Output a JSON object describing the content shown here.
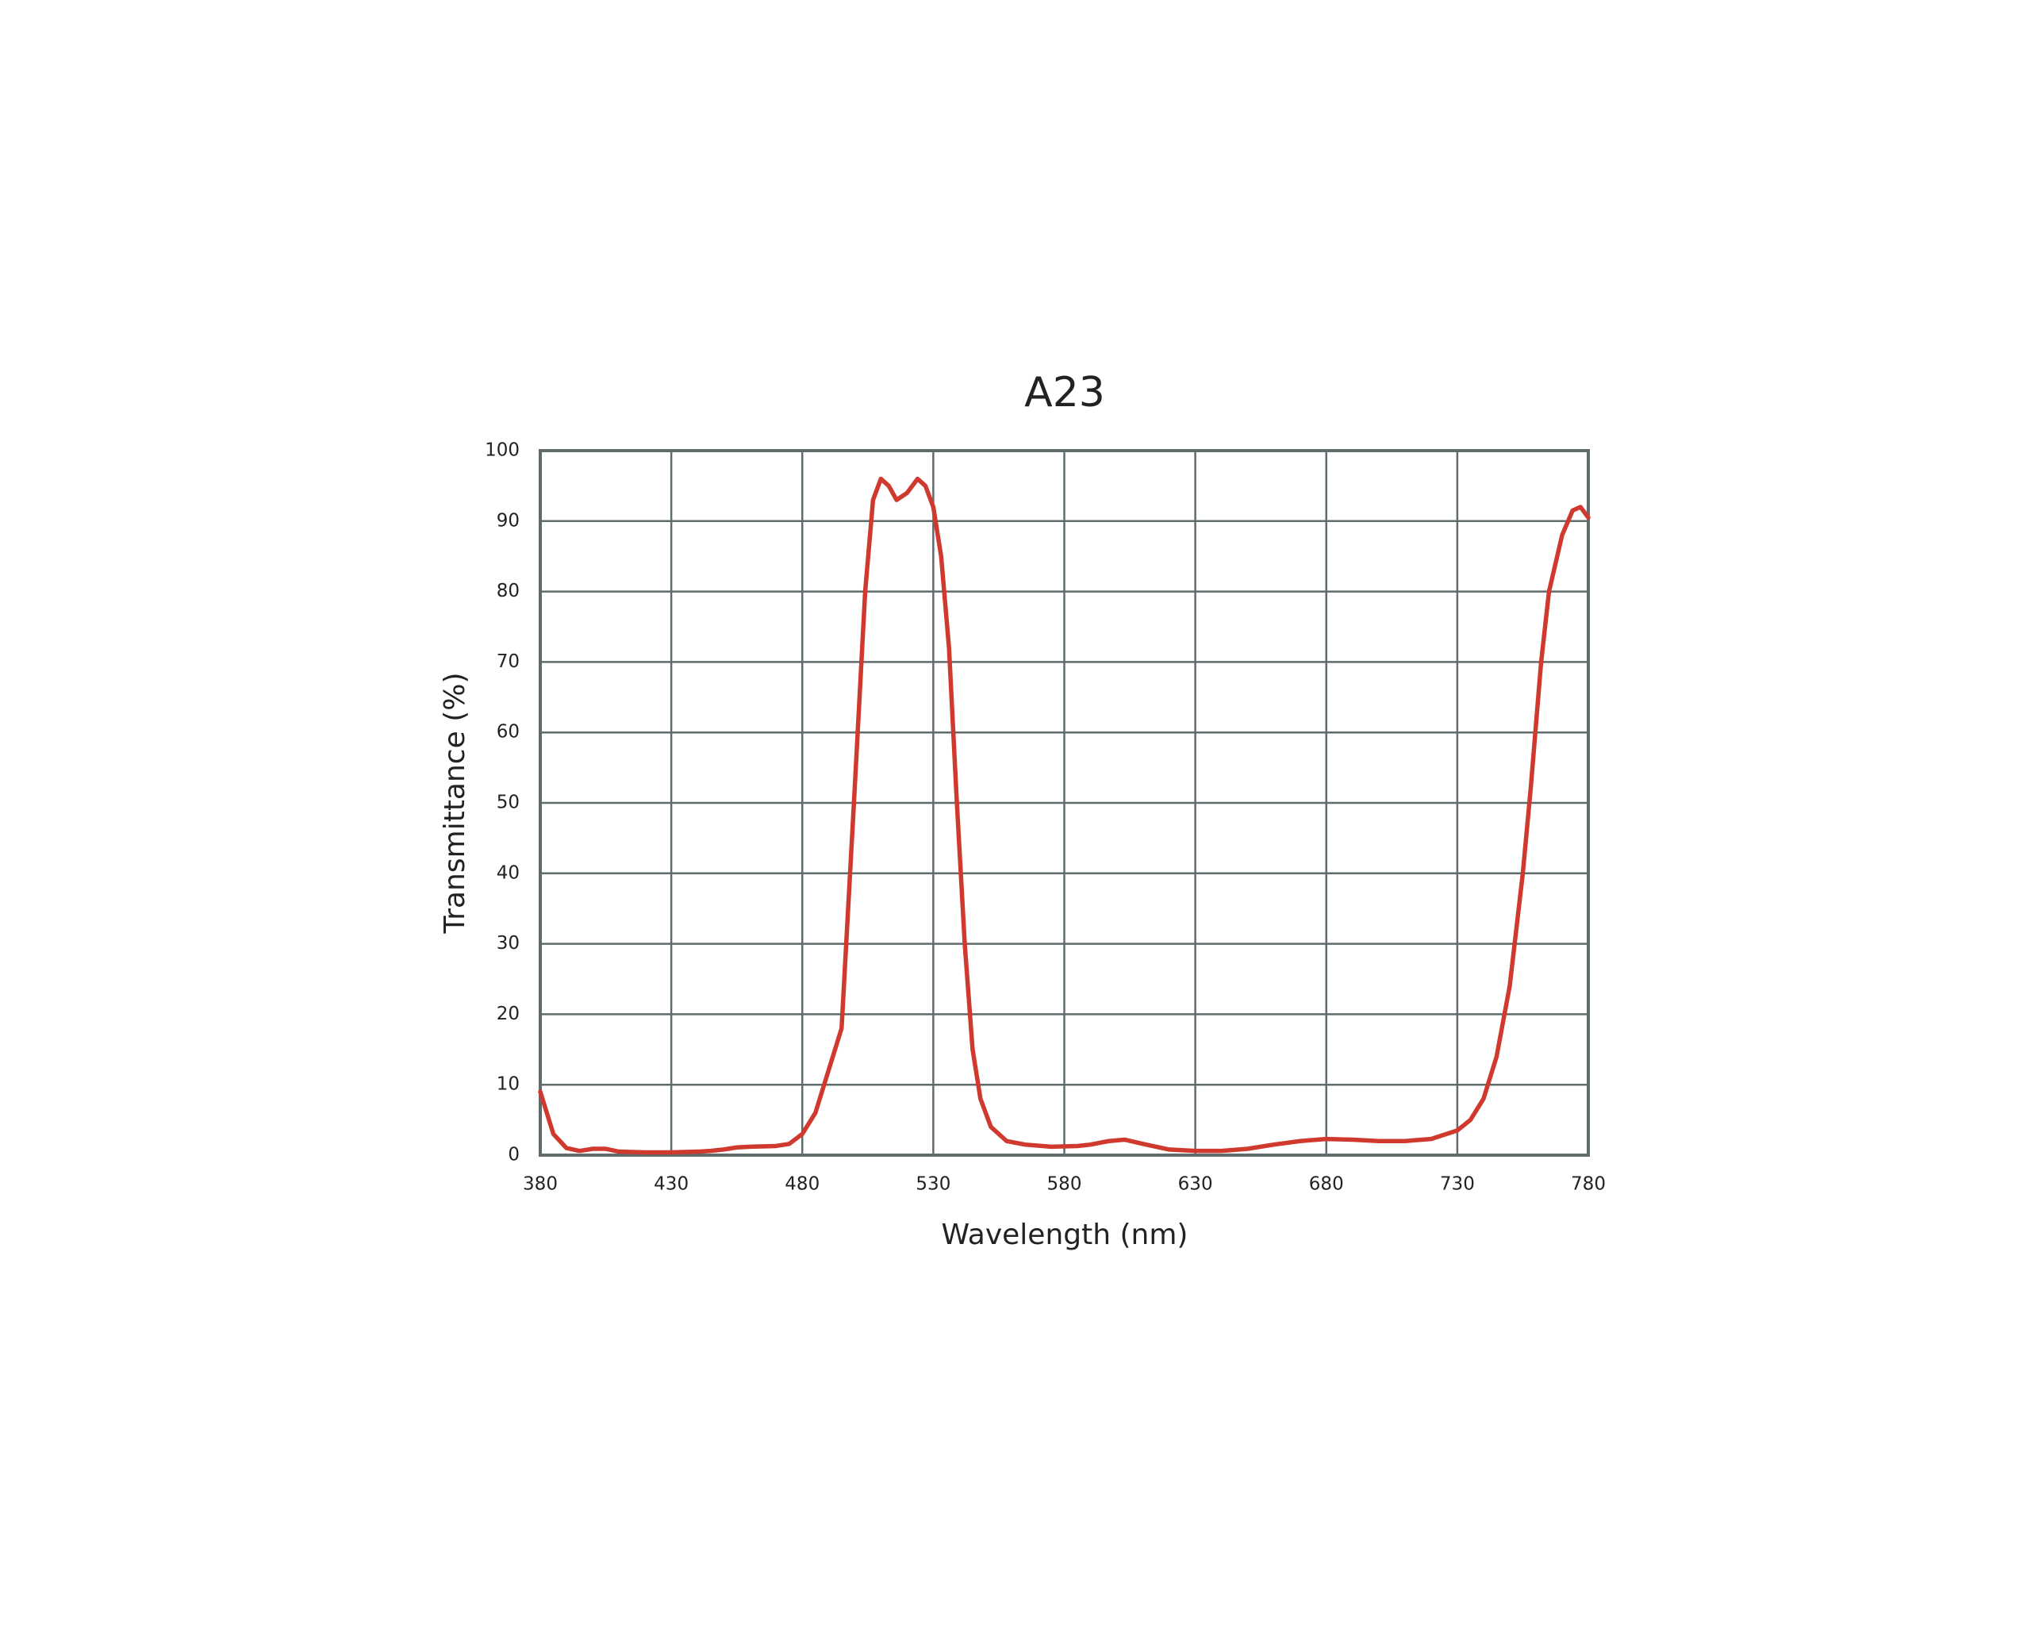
{
  "chart_data": {
    "type": "line",
    "title": "A23",
    "x_label": "Wavelength (nm)",
    "y_label": "Transmittance (%)",
    "x": [
      380,
      385,
      390,
      395,
      400,
      405,
      410,
      420,
      430,
      440,
      445,
      450,
      455,
      460,
      470,
      475,
      480,
      485,
      490,
      495,
      500,
      504,
      507,
      510,
      513,
      516,
      520,
      524,
      527,
      530,
      533,
      536,
      539,
      542,
      545,
      548,
      552,
      558,
      565,
      575,
      585,
      590,
      597,
      603,
      610,
      620,
      630,
      640,
      650,
      660,
      670,
      680,
      690,
      700,
      710,
      720,
      730,
      735,
      740,
      745,
      750,
      755,
      758,
      762,
      765,
      770,
      774,
      777,
      780
    ],
    "series": [
      {
        "name": "A23",
        "color": "#d0392e",
        "values": [
          9,
          3,
          1,
          0.6,
          0.9,
          0.9,
          0.5,
          0.4,
          0.4,
          0.5,
          0.6,
          0.8,
          1.1,
          1.2,
          1.3,
          1.6,
          3,
          6,
          12,
          18,
          52,
          80,
          93,
          96,
          95,
          93,
          94,
          96,
          95,
          92,
          85,
          72,
          50,
          30,
          15,
          8,
          4,
          2,
          1.5,
          1.2,
          1.3,
          1.5,
          2,
          2.2,
          1.6,
          0.8,
          0.6,
          0.6,
          0.9,
          1.5,
          2,
          2.3,
          2.2,
          2,
          2,
          2.3,
          3.5,
          5,
          8,
          14,
          24,
          40,
          52,
          70,
          80,
          88,
          91.5,
          92,
          90.5
        ]
      }
    ],
    "xlim": [
      380,
      780
    ],
    "xticks": [
      380,
      430,
      480,
      530,
      580,
      630,
      680,
      730,
      780
    ],
    "ylim": [
      0,
      100
    ],
    "yticks": [
      0,
      10,
      20,
      30,
      40,
      50,
      60,
      70,
      80,
      90,
      100
    ],
    "grid": true
  }
}
